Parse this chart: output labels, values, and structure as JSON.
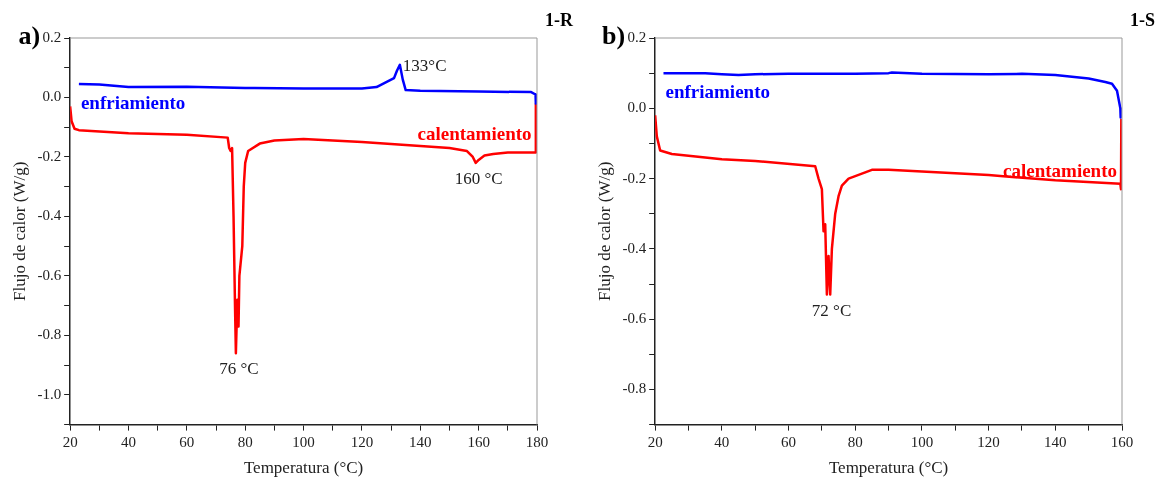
{
  "chart_data": [
    {
      "type": "line",
      "title": "a)",
      "subtitle": "1-R",
      "xlabel": "Temperatura (°C)",
      "ylabel": "Flujo de calor (W/g)",
      "xlim": [
        20,
        180
      ],
      "ylim": [
        -1.1,
        0.2
      ],
      "xticks": [
        20,
        {
          "value": 30,
          "label": null
        },
        40,
        {
          "value": 50,
          "label": null
        },
        60,
        {
          "value": 70,
          "label": null
        },
        80,
        {
          "value": 90,
          "label": null
        },
        100,
        {
          "value": 110,
          "label": null
        },
        120,
        {
          "value": 130,
          "label": null
        },
        140,
        {
          "value": 150,
          "label": null
        },
        160,
        {
          "value": 170,
          "label": null
        },
        180
      ],
      "yticks": [
        {
          "value": -1.1,
          "label": null
        },
        {
          "value": -1,
          "label": "-1.0"
        },
        {
          "value": -0.9,
          "label": null
        },
        -0.8,
        {
          "value": -0.7,
          "label": null
        },
        -0.6,
        {
          "value": -0.5,
          "label": null
        },
        -0.4,
        {
          "value": -0.3,
          "label": null
        },
        -0.2,
        {
          "value": -0.1,
          "label": null
        },
        {
          "value": 0,
          "label": "0.0"
        },
        {
          "value": 0.1,
          "label": null
        },
        0.2
      ],
      "series": [
        {
          "name": "enfriamiento",
          "color": "#0000ff",
          "x": [
            23,
            30,
            40,
            60,
            80,
            100,
            120,
            125,
            128,
            131,
            132,
            133,
            134,
            135,
            140,
            160,
            178,
            179.5,
            179.6
          ],
          "values": [
            0.045,
            0.044,
            0.035,
            0.036,
            0.032,
            0.03,
            0.03,
            0.035,
            0.05,
            0.065,
            0.09,
            0.11,
            0.06,
            0.025,
            0.023,
            0.02,
            0.018,
            0.01,
            -0.02
          ]
        },
        {
          "name": "calentamiento",
          "color": "#ff0000",
          "x": [
            20,
            20.5,
            21.5,
            23,
            40,
            60,
            74,
            74.5,
            75,
            75.5,
            76,
            76.5,
            76.8,
            77.3,
            77.7,
            78,
            79,
            79.5,
            80,
            81,
            85,
            90,
            100,
            120,
            150,
            156,
            158,
            159,
            160,
            162,
            165,
            170,
            179.5,
            179.6
          ],
          "values": [
            -0.03,
            -0.08,
            -0.105,
            -0.11,
            -0.12,
            -0.125,
            -0.135,
            -0.17,
            -0.18,
            -0.17,
            -0.4,
            -0.7,
            -0.86,
            -0.68,
            -0.77,
            -0.6,
            -0.5,
            -0.3,
            -0.22,
            -0.18,
            -0.155,
            -0.145,
            -0.14,
            -0.15,
            -0.17,
            -0.18,
            -0.2,
            -0.22,
            -0.21,
            -0.195,
            -0.19,
            -0.185,
            -0.185,
            -0.02
          ]
        }
      ],
      "annotations": [
        {
          "text": "133°C",
          "x": 133,
          "y": 0.11
        },
        {
          "text": "160 °C",
          "x": 159,
          "y": -0.22
        },
        {
          "text": "76 °C",
          "x": 76.8,
          "y": -0.86
        }
      ]
    },
    {
      "type": "line",
      "title": "b)",
      "subtitle": "1-S",
      "xlabel": "Temperatura (°C)",
      "ylabel": "Flujo de calor (W/g)",
      "xlim": [
        20,
        160
      ],
      "ylim": [
        -0.9,
        0.2
      ],
      "xticks": [
        20,
        {
          "value": 30,
          "label": null
        },
        40,
        {
          "value": 50,
          "label": null
        },
        60,
        {
          "value": 70,
          "label": null
        },
        80,
        {
          "value": 90,
          "label": null
        },
        100,
        {
          "value": 110,
          "label": null
        },
        120,
        {
          "value": 130,
          "label": null
        },
        140,
        {
          "value": 150,
          "label": null
        },
        160
      ],
      "yticks": [
        {
          "value": -0.9,
          "label": null
        },
        -0.8,
        {
          "value": -0.7,
          "label": null
        },
        -0.6,
        {
          "value": -0.5,
          "label": null
        },
        -0.4,
        {
          "value": -0.3,
          "label": null
        },
        -0.2,
        {
          "value": -0.1,
          "label": null
        },
        {
          "value": 0,
          "label": "0.0"
        },
        {
          "value": 0.1,
          "label": null
        },
        0.2
      ],
      "series": [
        {
          "name": "enfriamiento",
          "color": "#0000ff",
          "x": [
            22.5,
            35,
            40,
            45,
            50,
            60,
            80,
            90,
            91,
            100,
            120,
            130,
            140,
            145,
            150,
            155,
            157,
            158.5,
            159.5,
            159.6
          ],
          "values": [
            0.1,
            0.1,
            0.097,
            0.095,
            0.097,
            0.098,
            0.098,
            0.1,
            0.102,
            0.098,
            0.097,
            0.098,
            0.095,
            0.09,
            0.085,
            0.075,
            0.07,
            0.05,
            0.0,
            -0.026
          ]
        },
        {
          "name": "calentamiento",
          "color": "#ff0000",
          "x": [
            20,
            20.5,
            21.5,
            25,
            40,
            50,
            68,
            69,
            70,
            70.5,
            71,
            71.5,
            72,
            72.5,
            73,
            74,
            75,
            76,
            78,
            85,
            90,
            100,
            120,
            140,
            159.5,
            159.7,
            159.8
          ],
          "values": [
            -0.02,
            -0.08,
            -0.12,
            -0.13,
            -0.145,
            -0.15,
            -0.165,
            -0.2,
            -0.23,
            -0.35,
            -0.33,
            -0.53,
            -0.42,
            -0.53,
            -0.4,
            -0.3,
            -0.25,
            -0.22,
            -0.2,
            -0.175,
            -0.175,
            -0.18,
            -0.19,
            -0.205,
            -0.215,
            -0.23,
            -0.03
          ]
        }
      ],
      "annotations": [
        {
          "text": "72 °C",
          "x": 72,
          "y": -0.53
        }
      ]
    }
  ]
}
